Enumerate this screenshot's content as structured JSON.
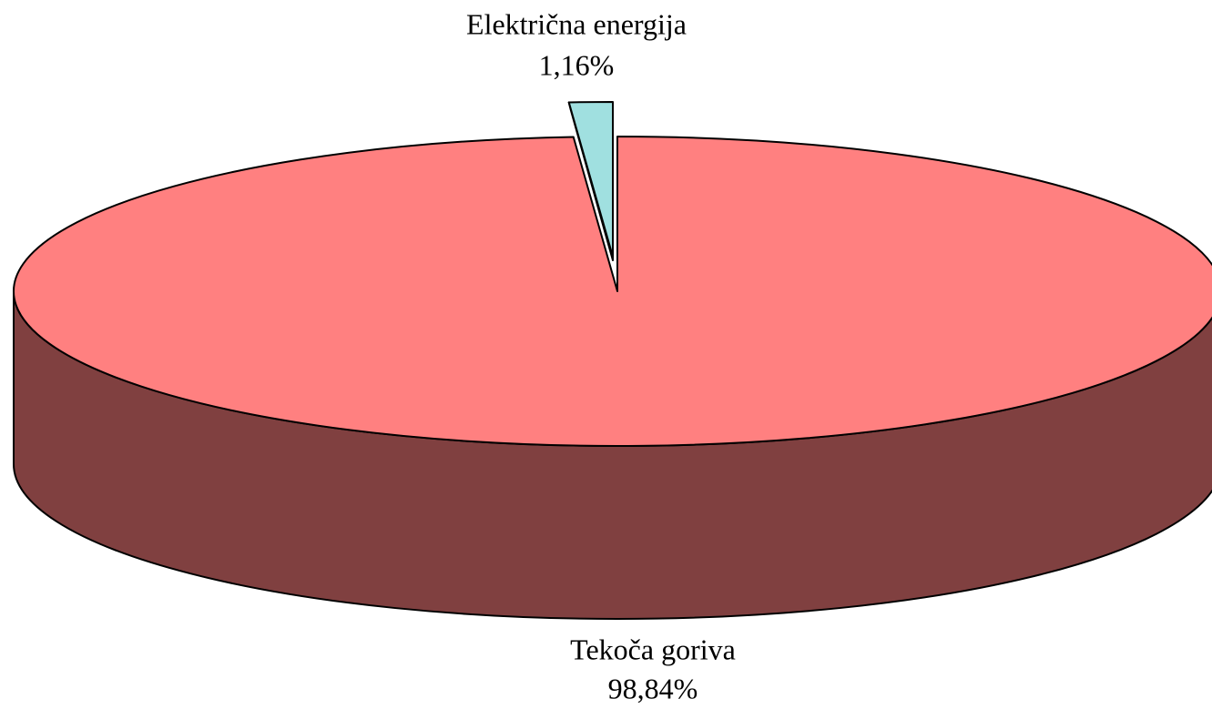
{
  "chart_data": {
    "type": "pie",
    "categories": [
      "Tekoča goriva",
      "Električna energija"
    ],
    "values": [
      98.84,
      1.16
    ],
    "value_labels": [
      "98,84%",
      "1,16%"
    ],
    "colors": [
      "#ff8080",
      "#a0e0e0"
    ]
  }
}
